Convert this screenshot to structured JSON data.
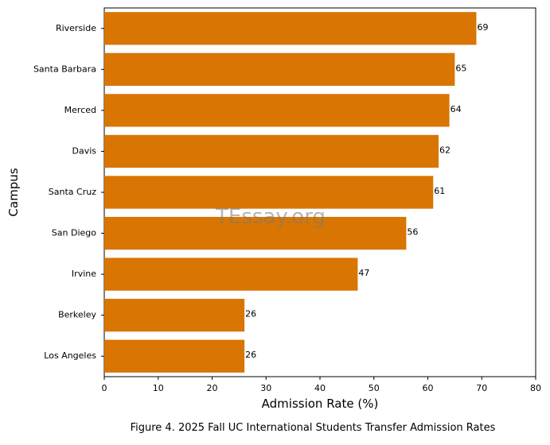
{
  "chart_data": {
    "type": "bar",
    "orientation": "horizontal",
    "categories": [
      "Riverside",
      "Santa Barbara",
      "Merced",
      "Davis",
      "Santa Cruz",
      "San Diego",
      "Irvine",
      "Berkeley",
      "Los Angeles"
    ],
    "values": [
      69,
      65,
      64,
      62,
      61,
      56,
      47,
      26,
      26
    ],
    "value_labels": [
      "69",
      "65",
      "64",
      "62",
      "61",
      "56",
      "47",
      "26",
      "26"
    ],
    "xlabel": "Admission Rate (%)",
    "ylabel": "Campus",
    "xlim": [
      0,
      80
    ],
    "xticks": [
      "0",
      "10",
      "20",
      "30",
      "40",
      "50",
      "60",
      "70",
      "80"
    ],
    "grid": false,
    "bar_color": "#d97502",
    "caption": "Figure 4. 2025 Fall UC International Students Transfer Admission Rates",
    "watermark": "TEssay.org"
  }
}
